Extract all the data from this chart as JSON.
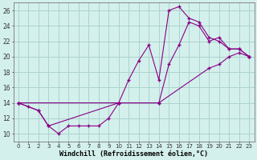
{
  "xlabel": "Windchill (Refroidissement éolien,°C)",
  "background_color": "#d4f0ec",
  "grid_color": "#aad4cc",
  "line_color": "#880088",
  "xlim": [
    -0.5,
    23.5
  ],
  "ylim": [
    9,
    27
  ],
  "yticks": [
    10,
    12,
    14,
    16,
    18,
    20,
    22,
    24,
    26
  ],
  "xticks": [
    0,
    1,
    2,
    3,
    4,
    5,
    6,
    7,
    8,
    9,
    10,
    11,
    12,
    13,
    14,
    15,
    16,
    17,
    18,
    19,
    20,
    21,
    22,
    23
  ],
  "series1_x": [
    0,
    1,
    2,
    3,
    4,
    5,
    6,
    7,
    8,
    9,
    10,
    11,
    12,
    13,
    14,
    15,
    16,
    17,
    18,
    19,
    20,
    21,
    22,
    23
  ],
  "series1_y": [
    14.0,
    13.5,
    13.0,
    11.0,
    10.0,
    11.0,
    11.0,
    11.0,
    11.0,
    12.0,
    14.0,
    17.0,
    19.5,
    21.5,
    17.0,
    26.0,
    26.5,
    25.0,
    24.5,
    22.5,
    22.0,
    21.0,
    21.0,
    20.0
  ],
  "series2_x": [
    0,
    2,
    3,
    10,
    14,
    15,
    16,
    17,
    18,
    19,
    20,
    21,
    22,
    23
  ],
  "series2_y": [
    14.0,
    13.0,
    11.0,
    14.0,
    14.0,
    19.0,
    21.5,
    24.5,
    24.0,
    22.0,
    22.5,
    21.0,
    21.0,
    20.0
  ],
  "series3_x": [
    0,
    10,
    14,
    19,
    20,
    21,
    22,
    23
  ],
  "series3_y": [
    14.0,
    14.0,
    14.0,
    18.5,
    19.0,
    20.0,
    20.5,
    20.0
  ]
}
